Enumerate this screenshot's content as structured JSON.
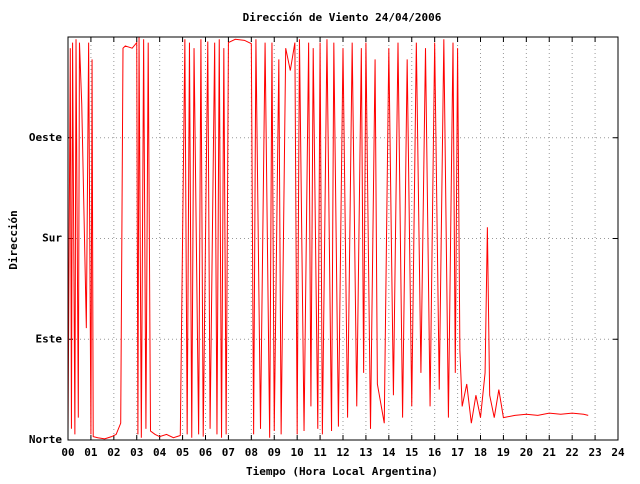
{
  "chart_data": {
    "type": "line",
    "title": "Dirección de Viento 24/04/2006",
    "xlabel": "Tiempo (Hora Local Argentina)",
    "ylabel": "Dirección",
    "color": "#ff0000",
    "grid": true,
    "xlim": [
      0,
      24
    ],
    "ylim": [
      0,
      360
    ],
    "xticks": [
      {
        "value": 0,
        "label": "00"
      },
      {
        "value": 1,
        "label": "01"
      },
      {
        "value": 2,
        "label": "02"
      },
      {
        "value": 3,
        "label": "03"
      },
      {
        "value": 4,
        "label": "04"
      },
      {
        "value": 5,
        "label": "05"
      },
      {
        "value": 6,
        "label": "06"
      },
      {
        "value": 7,
        "label": "07"
      },
      {
        "value": 8,
        "label": "08"
      },
      {
        "value": 9,
        "label": "09"
      },
      10,
      11,
      12,
      13,
      14,
      15,
      16,
      17,
      18,
      19,
      20,
      21,
      22,
      23,
      24
    ],
    "yticks": [
      {
        "value": 0,
        "label": "Norte"
      },
      {
        "value": 90,
        "label": "Este"
      },
      {
        "value": 180,
        "label": "Sur"
      },
      {
        "value": 270,
        "label": "Oeste"
      }
    ],
    "x": [
      0.0,
      0.1,
      0.15,
      0.2,
      0.3,
      0.35,
      0.45,
      0.5,
      0.6,
      0.7,
      0.8,
      0.9,
      1.0,
      1.05,
      1.1,
      1.3,
      1.6,
      1.9,
      2.1,
      2.3,
      2.4,
      2.5,
      2.8,
      3.0,
      3.05,
      3.1,
      3.2,
      3.3,
      3.4,
      3.5,
      3.6,
      3.8,
      4.0,
      4.3,
      4.6,
      4.9,
      5.1,
      5.2,
      5.3,
      5.4,
      5.5,
      5.7,
      5.8,
      5.9,
      6.1,
      6.2,
      6.4,
      6.5,
      6.6,
      6.7,
      6.8,
      6.9,
      7.0,
      7.3,
      7.7,
      8.0,
      8.1,
      8.2,
      8.4,
      8.6,
      8.8,
      8.9,
      9.0,
      9.2,
      9.3,
      9.5,
      9.7,
      9.9,
      10.0,
      10.1,
      10.3,
      10.5,
      10.6,
      10.7,
      10.9,
      11.0,
      11.1,
      11.3,
      11.5,
      11.6,
      11.8,
      12.0,
      12.2,
      12.4,
      12.6,
      12.8,
      12.9,
      13.0,
      13.2,
      13.4,
      13.5,
      13.8,
      14.0,
      14.2,
      14.4,
      14.6,
      14.8,
      15.0,
      15.2,
      15.4,
      15.6,
      15.8,
      16.0,
      16.2,
      16.4,
      16.6,
      16.8,
      16.9,
      17.0,
      17.1,
      17.2,
      17.4,
      17.6,
      17.8,
      18.0,
      18.2,
      18.3,
      18.4,
      18.6,
      18.8,
      19.0,
      19.5,
      20.0,
      20.5,
      21.0,
      21.5,
      22.0,
      22.5,
      22.7
    ],
    "values": [
      5,
      350,
      10,
      355,
      5,
      358,
      20,
      355,
      300,
      200,
      100,
      355,
      5,
      340,
      3,
      2,
      1,
      3,
      5,
      15,
      350,
      352,
      350,
      355,
      5,
      360,
      2,
      358,
      10,
      355,
      8,
      5,
      3,
      5,
      2,
      4,
      358,
      5,
      355,
      2,
      350,
      5,
      358,
      3,
      356,
      10,
      355,
      5,
      358,
      2,
      350,
      5,
      355,
      358,
      357,
      354,
      5,
      358,
      10,
      355,
      2,
      355,
      8,
      340,
      5,
      350,
      330,
      355,
      5,
      358,
      8,
      355,
      30,
      350,
      10,
      355,
      5,
      358,
      8,
      355,
      12,
      350,
      20,
      355,
      30,
      350,
      60,
      355,
      10,
      340,
      50,
      15,
      350,
      40,
      355,
      20,
      340,
      30,
      355,
      60,
      350,
      30,
      355,
      45,
      358,
      20,
      355,
      60,
      350,
      80,
      30,
      50,
      15,
      40,
      20,
      60,
      190,
      40,
      20,
      45,
      20,
      22,
      23,
      22,
      24,
      23,
      24,
      23,
      22
    ]
  }
}
